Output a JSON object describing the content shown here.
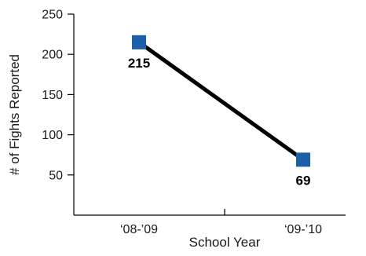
{
  "chart_data": {
    "type": "line",
    "categories": [
      "‘08-’09",
      "‘09-’10"
    ],
    "series": [
      {
        "values": [
          215,
          69
        ],
        "data_labels": [
          "215",
          "69"
        ]
      }
    ],
    "title": "",
    "xlabel": "School Year",
    "ylabel": "# of Fights Reported",
    "ylim": [
      0,
      250
    ],
    "yticks": [
      50,
      100,
      150,
      200,
      250
    ],
    "grid": false,
    "legend": "none",
    "line_color": "#000000",
    "marker_color": "#1a5fa8",
    "marker": "square"
  }
}
